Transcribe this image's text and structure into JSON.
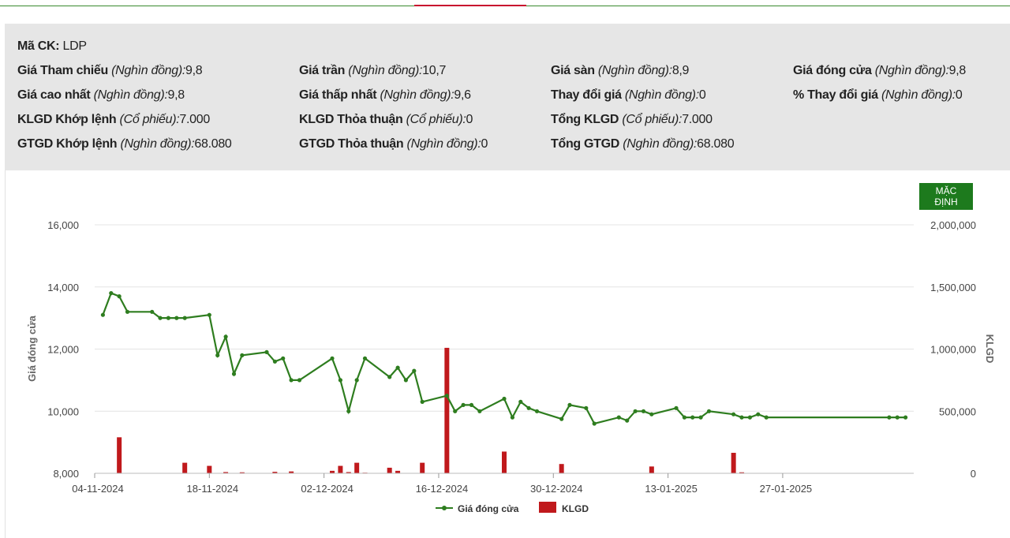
{
  "info": {
    "ma_ck": {
      "label": "Mã CK:",
      "value": "LDP"
    },
    "rows": [
      [
        {
          "label": "Giá Tham chiếu",
          "unit": "(Nghìn đồng):",
          "value": "9,8"
        },
        {
          "label": "Giá trần",
          "unit": "(Nghìn đồng):",
          "value": "10,7"
        },
        {
          "label": "Giá sàn",
          "unit": "(Nghìn đồng):",
          "value": "8,9"
        },
        {
          "label": "Giá đóng cửa",
          "unit": "(Nghìn đồng):",
          "value": "9,8"
        }
      ],
      [
        {
          "label": "Giá cao nhất",
          "unit": "(Nghìn đồng):",
          "value": "9,8"
        },
        {
          "label": "Giá thấp nhất",
          "unit": "(Nghìn đồng):",
          "value": "9,6"
        },
        {
          "label": "Thay đổi giá",
          "unit": "(Nghìn đồng):",
          "value": "0"
        },
        {
          "label": "% Thay đổi giá",
          "unit": "(Nghìn đồng):",
          "value": "0"
        }
      ],
      [
        {
          "label": "KLGD Khớp lệnh",
          "unit": "(Cổ phiếu):",
          "value": "7.000"
        },
        {
          "label": "KLGD Thỏa thuận",
          "unit": "(Cổ phiếu):",
          "value": "0"
        },
        {
          "label": "Tổng KLGD",
          "unit": "(Cổ phiếu):",
          "value": "7.000"
        },
        null
      ],
      [
        {
          "label": "GTGD Khớp lệnh",
          "unit": "(Nghìn đồng):",
          "value": "68.080"
        },
        {
          "label": "GTGD Thỏa thuận",
          "unit": "(Nghìn đồng):",
          "value": "0"
        },
        {
          "label": "Tổng GTGD",
          "unit": "(Nghìn đồng):",
          "value": "68.080"
        },
        null
      ]
    ]
  },
  "button": {
    "default_label": "MẶC ĐỊNH"
  },
  "colors": {
    "price_line": "#2e7d1f",
    "volume_bar": "#c0191c",
    "grid": "#e4e4e4",
    "button": "#1d7a1d"
  },
  "chart_data": {
    "type": "line+bar",
    "ylabel_left": "Giá đóng cửa",
    "ylabel_right": "KLGD",
    "ylim_left": [
      8000,
      16000
    ],
    "ylim_right": [
      0,
      2000000
    ],
    "yticks_left": [
      "8,000",
      "10,000",
      "12,000",
      "14,000",
      "16,000"
    ],
    "yticks_left_values": [
      8000,
      10000,
      12000,
      14000,
      16000
    ],
    "yticks_right": [
      "0",
      "500,000",
      "1,000,000",
      "1,500,000",
      "2,000,000"
    ],
    "yticks_right_values": [
      0,
      500000,
      1000000,
      1500000,
      2000000
    ],
    "xlim": [
      "2024-11-04",
      "2025-02-12"
    ],
    "xticks": [
      "04-11-2024",
      "18-11-2024",
      "02-12-2024",
      "16-12-2024",
      "30-12-2024",
      "13-01-2025",
      "27-01-2025"
    ],
    "xticks_dates": [
      "2024-11-04",
      "2024-11-18",
      "2024-12-02",
      "2024-12-16",
      "2024-12-30",
      "2025-01-13",
      "2025-01-27"
    ],
    "grid": true,
    "legend_position": "bottom",
    "series": [
      {
        "name": "Giá đóng cửa",
        "kind": "line",
        "points": [
          [
            "2024-11-05",
            13100
          ],
          [
            "2024-11-06",
            13800
          ],
          [
            "2024-11-07",
            13700
          ],
          [
            "2024-11-08",
            13200
          ],
          [
            "2024-11-11",
            13200
          ],
          [
            "2024-11-12",
            13000
          ],
          [
            "2024-11-13",
            13000
          ],
          [
            "2024-11-14",
            13000
          ],
          [
            "2024-11-15",
            13000
          ],
          [
            "2024-11-18",
            13100
          ],
          [
            "2024-11-19",
            11800
          ],
          [
            "2024-11-20",
            12400
          ],
          [
            "2024-11-21",
            11200
          ],
          [
            "2024-11-22",
            11800
          ],
          [
            "2024-11-25",
            11900
          ],
          [
            "2024-11-26",
            11600
          ],
          [
            "2024-11-27",
            11700
          ],
          [
            "2024-11-28",
            11000
          ],
          [
            "2024-11-29",
            11000
          ],
          [
            "2024-12-03",
            11700
          ],
          [
            "2024-12-04",
            11000
          ],
          [
            "2024-12-05",
            10000
          ],
          [
            "2024-12-06",
            11000
          ],
          [
            "2024-12-07",
            11700
          ],
          [
            "2024-12-10",
            11100
          ],
          [
            "2024-12-11",
            11400
          ],
          [
            "2024-12-12",
            11000
          ],
          [
            "2024-12-13",
            11300
          ],
          [
            "2024-12-14",
            10300
          ],
          [
            "2024-12-17",
            10500
          ],
          [
            "2024-12-18",
            10000
          ],
          [
            "2024-12-19",
            10200
          ],
          [
            "2024-12-20",
            10200
          ],
          [
            "2024-12-21",
            10000
          ],
          [
            "2024-12-24",
            10400
          ],
          [
            "2024-12-25",
            9800
          ],
          [
            "2024-12-26",
            10300
          ],
          [
            "2024-12-27",
            10100
          ],
          [
            "2024-12-28",
            10000
          ],
          [
            "2024-12-31",
            9750
          ],
          [
            "2025-01-01",
            10200
          ],
          [
            "2025-01-03",
            10100
          ],
          [
            "2025-01-04",
            9600
          ],
          [
            "2025-01-07",
            9800
          ],
          [
            "2025-01-08",
            9700
          ],
          [
            "2025-01-09",
            10000
          ],
          [
            "2025-01-10",
            10000
          ],
          [
            "2025-01-11",
            9900
          ],
          [
            "2025-01-14",
            10100
          ],
          [
            "2025-01-15",
            9800
          ],
          [
            "2025-01-16",
            9800
          ],
          [
            "2025-01-17",
            9800
          ],
          [
            "2025-01-18",
            10000
          ],
          [
            "2025-01-21",
            9900
          ],
          [
            "2025-01-22",
            9800
          ],
          [
            "2025-01-23",
            9800
          ],
          [
            "2025-01-24",
            9900
          ],
          [
            "2025-01-25",
            9800
          ],
          [
            "2025-02-09",
            9800
          ],
          [
            "2025-02-10",
            9800
          ],
          [
            "2025-02-11",
            9800
          ]
        ]
      },
      {
        "name": "KLGD",
        "kind": "bar",
        "points": [
          [
            "2024-11-07",
            290000
          ],
          [
            "2024-11-15",
            85000
          ],
          [
            "2024-11-18",
            60000
          ],
          [
            "2024-11-20",
            10000
          ],
          [
            "2024-11-22",
            8000
          ],
          [
            "2024-11-26",
            12000
          ],
          [
            "2024-11-28",
            15000
          ],
          [
            "2024-12-03",
            20000
          ],
          [
            "2024-12-04",
            60000
          ],
          [
            "2024-12-05",
            10000
          ],
          [
            "2024-12-06",
            85000
          ],
          [
            "2024-12-07",
            5000
          ],
          [
            "2024-12-10",
            45000
          ],
          [
            "2024-12-11",
            20000
          ],
          [
            "2024-12-14",
            85000
          ],
          [
            "2024-12-17",
            1010000
          ],
          [
            "2024-12-24",
            175000
          ],
          [
            "2024-12-31",
            75000
          ],
          [
            "2025-01-11",
            55000
          ],
          [
            "2025-01-21",
            165000
          ],
          [
            "2025-01-22",
            8000
          ]
        ]
      }
    ]
  }
}
